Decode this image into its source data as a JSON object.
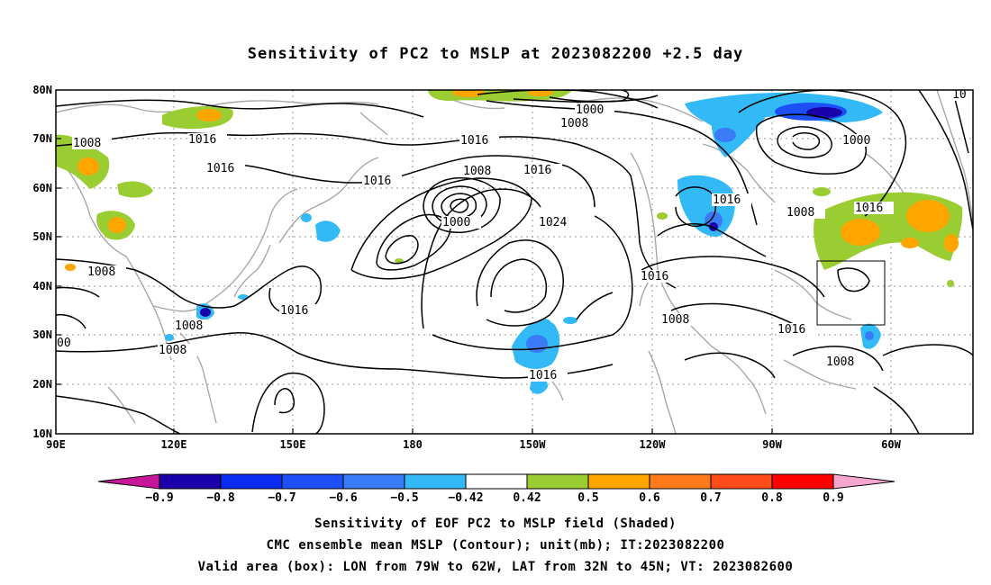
{
  "title": "Sensitivity of PC2 to MSLP at 2023082200 +2.5 day",
  "axes": {
    "lat_ticks": [
      "80N",
      "70N",
      "60N",
      "50N",
      "40N",
      "30N",
      "20N",
      "10N"
    ],
    "lon_ticks": [
      "90E",
      "120E",
      "150E",
      "180",
      "150W",
      "120W",
      "90W",
      "60W"
    ]
  },
  "contour_labels": [
    {
      "text": "1008",
      "id": "c1"
    },
    {
      "text": "1016",
      "id": "c2"
    },
    {
      "text": "1016",
      "id": "c3"
    },
    {
      "text": "1016",
      "id": "c4"
    },
    {
      "text": "1016",
      "id": "c5"
    },
    {
      "text": "1000",
      "id": "c6"
    },
    {
      "text": "1008",
      "id": "c7"
    },
    {
      "text": "1016",
      "id": "c8"
    },
    {
      "text": "1008",
      "id": "c9"
    },
    {
      "text": "1016",
      "id": "c10"
    },
    {
      "text": "1000",
      "id": "c11"
    },
    {
      "text": "1024",
      "id": "c12"
    },
    {
      "text": "1016",
      "id": "c13"
    },
    {
      "text": "1008",
      "id": "c14"
    },
    {
      "text": "1016",
      "id": "c15"
    },
    {
      "text": "1008",
      "id": "c16"
    },
    {
      "text": "1008",
      "id": "c17"
    },
    {
      "text": "1016",
      "id": "c18"
    },
    {
      "text": "1016",
      "id": "c19"
    },
    {
      "text": "1008",
      "id": "c20"
    },
    {
      "text": "1016",
      "id": "c21"
    },
    {
      "text": "1016",
      "id": "c22"
    },
    {
      "text": "1008",
      "id": "c23"
    },
    {
      "text": "1000",
      "id": "c24"
    },
    {
      "text": "10",
      "id": "c25"
    },
    {
      "text": "00",
      "id": "c26"
    }
  ],
  "colorbar": {
    "labels": [
      "-0.9",
      "-0.8",
      "-0.7",
      "-0.6",
      "-0.5",
      "-0.42",
      "0.42",
      "0.5",
      "0.6",
      "0.7",
      "0.8",
      "0.9"
    ],
    "colors": [
      "#1a00a8",
      "#0a2cf0",
      "#1c4ff5",
      "#3a7cf7",
      "#33b9f5",
      "#ffffff",
      "#9acd32",
      "#ffa500",
      "#ff7a1a",
      "#ff4a1a",
      "#ff0000"
    ],
    "low_end_color": "#c8169a",
    "high_end_color": "#f4a6cf"
  },
  "captions": [
    "Sensitivity of EOF PC2 to MSLP field (Shaded)",
    "CMC ensemble mean MSLP (Contour); unit(mb); IT:2023082200",
    "Valid area (box): LON from 79W to 62W, LAT from 32N to 45N; VT: 2023082600"
  ],
  "valid_box": {
    "lon_min": "79W",
    "lon_max": "62W",
    "lat_min": "32N",
    "lat_max": "45N"
  }
}
